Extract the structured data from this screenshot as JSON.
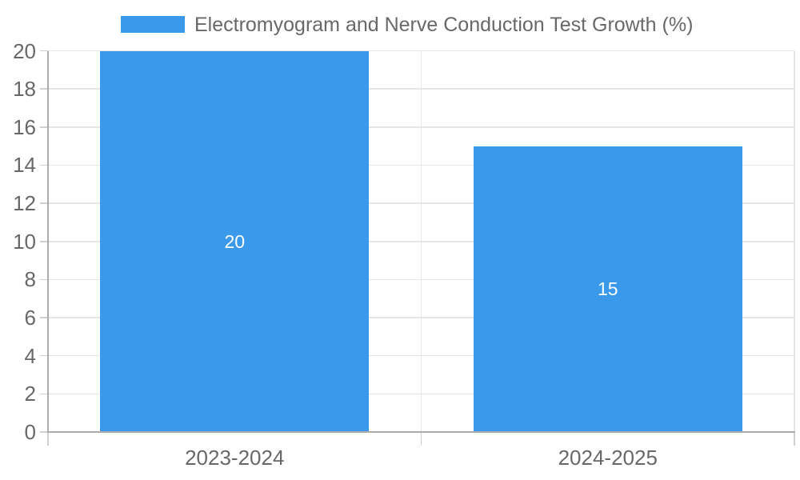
{
  "chart_data": {
    "type": "bar",
    "legend": {
      "position": "top",
      "label": "Electromyogram and Nerve Conduction Test Growth (%)"
    },
    "categories": [
      "2023-2024",
      "2024-2025"
    ],
    "series": [
      {
        "name": "Electromyogram and Nerve Conduction Test Growth (%)",
        "values": [
          20,
          15
        ]
      }
    ],
    "data_labels": [
      "20",
      "15"
    ],
    "xlabel": "",
    "ylabel": "",
    "ylim": [
      0,
      20
    ],
    "yticks": [
      0,
      2,
      4,
      6,
      8,
      10,
      12,
      14,
      16,
      18,
      20
    ],
    "grid": true,
    "colors": {
      "bar": "#3B99EC",
      "gridline": "#E6E6E6",
      "tick_mark": "#CFCFCF",
      "axis_line": "#ABABAB",
      "tick_text": "#686868",
      "legend_text": "#686868",
      "data_label_text": "#FFFFFF",
      "background": "#FFFFFF"
    }
  }
}
